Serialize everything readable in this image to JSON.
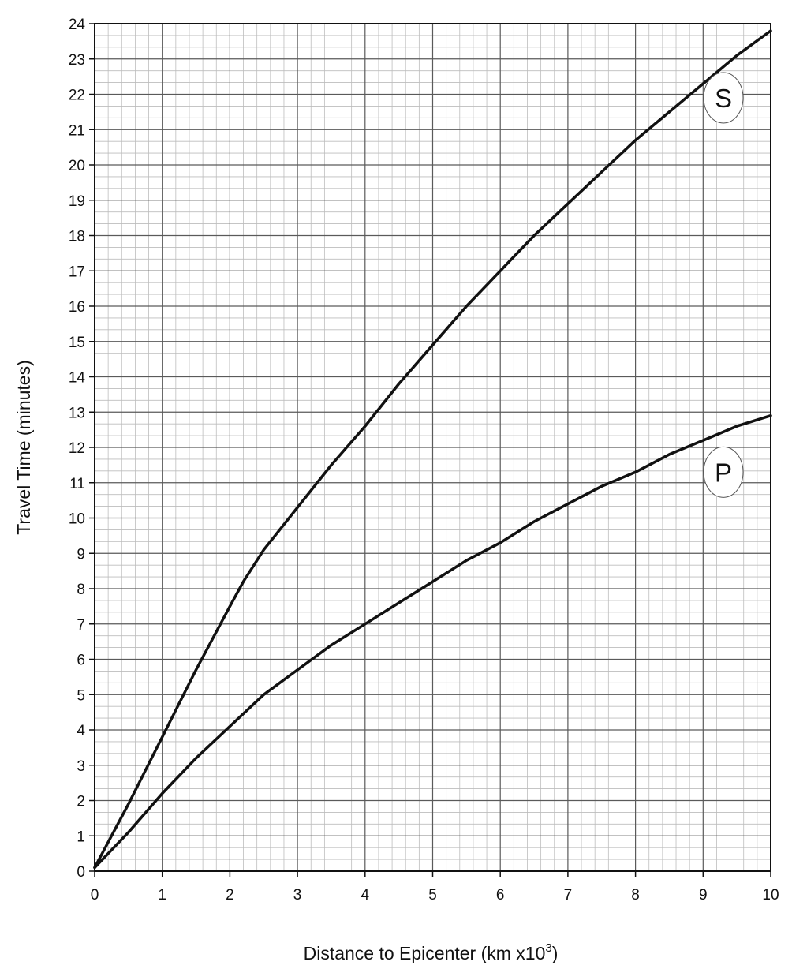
{
  "chart_data": {
    "type": "line",
    "xlabel": "Distance to Epicenter (km x10",
    "xlabel_superscript": "3",
    "xlabel_suffix": ")",
    "ylabel": "Travel Time (minutes)",
    "xlim": [
      0,
      10
    ],
    "ylim": [
      0,
      24
    ],
    "x_ticks": [
      "0",
      "1",
      "2",
      "3",
      "4",
      "5",
      "6",
      "7",
      "8",
      "9",
      "10"
    ],
    "y_ticks": [
      "0",
      "1",
      "2",
      "3",
      "4",
      "5",
      "6",
      "7",
      "8",
      "9",
      "10",
      "11",
      "12",
      "13",
      "14",
      "15",
      "16",
      "17",
      "18",
      "19",
      "20",
      "21",
      "22",
      "23",
      "24"
    ],
    "grid": true,
    "grid_minor_x_step": 0.2,
    "grid_minor_y_step": 0.333,
    "line_color": "#111111",
    "series": [
      {
        "name": "S",
        "x": [
          0,
          0.5,
          1,
          1.5,
          2,
          2.2,
          2.5,
          3,
          3.5,
          4,
          4.5,
          5,
          5.5,
          6,
          6.5,
          7,
          7.5,
          8,
          8.5,
          9,
          9.5,
          10
        ],
        "y": [
          0.1,
          1.9,
          3.8,
          5.7,
          7.5,
          8.2,
          9.1,
          10.3,
          11.5,
          12.6,
          13.8,
          14.9,
          16.0,
          17.0,
          18.0,
          18.9,
          19.8,
          20.7,
          21.5,
          22.3,
          23.1,
          23.8
        ]
      },
      {
        "name": "P",
        "x": [
          0,
          0.5,
          1,
          1.5,
          2,
          2.5,
          3,
          3.5,
          4,
          4.5,
          5,
          5.5,
          6,
          6.5,
          7,
          7.5,
          8,
          8.5,
          9,
          9.5,
          10
        ],
        "y": [
          0.1,
          1.1,
          2.2,
          3.2,
          4.1,
          5.0,
          5.7,
          6.4,
          7.0,
          7.6,
          8.2,
          8.8,
          9.3,
          9.9,
          10.4,
          10.9,
          11.3,
          11.8,
          12.2,
          12.6,
          12.9
        ]
      }
    ]
  }
}
